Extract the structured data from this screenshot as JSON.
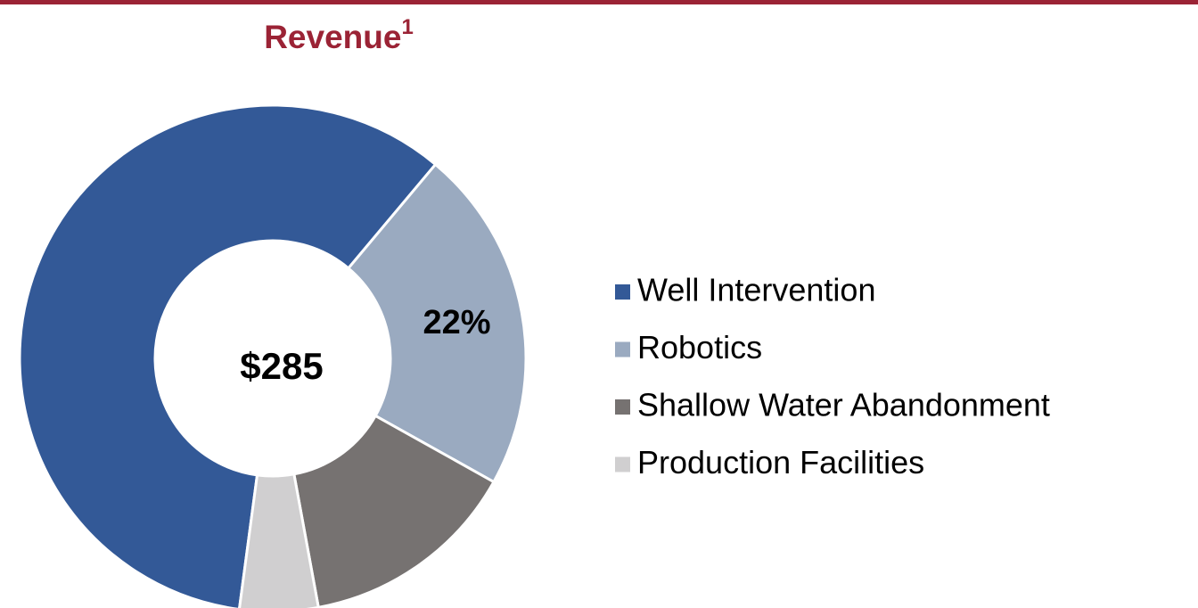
{
  "chart_data": {
    "type": "donut",
    "title": "Revenue",
    "title_superscript": "1",
    "center_label": "$285",
    "categories": [
      "Well Intervention",
      "Robotics",
      "Shallow Water Abandonment",
      "Production Facilities"
    ],
    "values": [
      59,
      22,
      14,
      5
    ],
    "value_labels": [
      null,
      "22%",
      null,
      null
    ],
    "colors": [
      "#335997",
      "#9aaac0",
      "#767271",
      "#d0cfd0"
    ],
    "legend": "right"
  }
}
